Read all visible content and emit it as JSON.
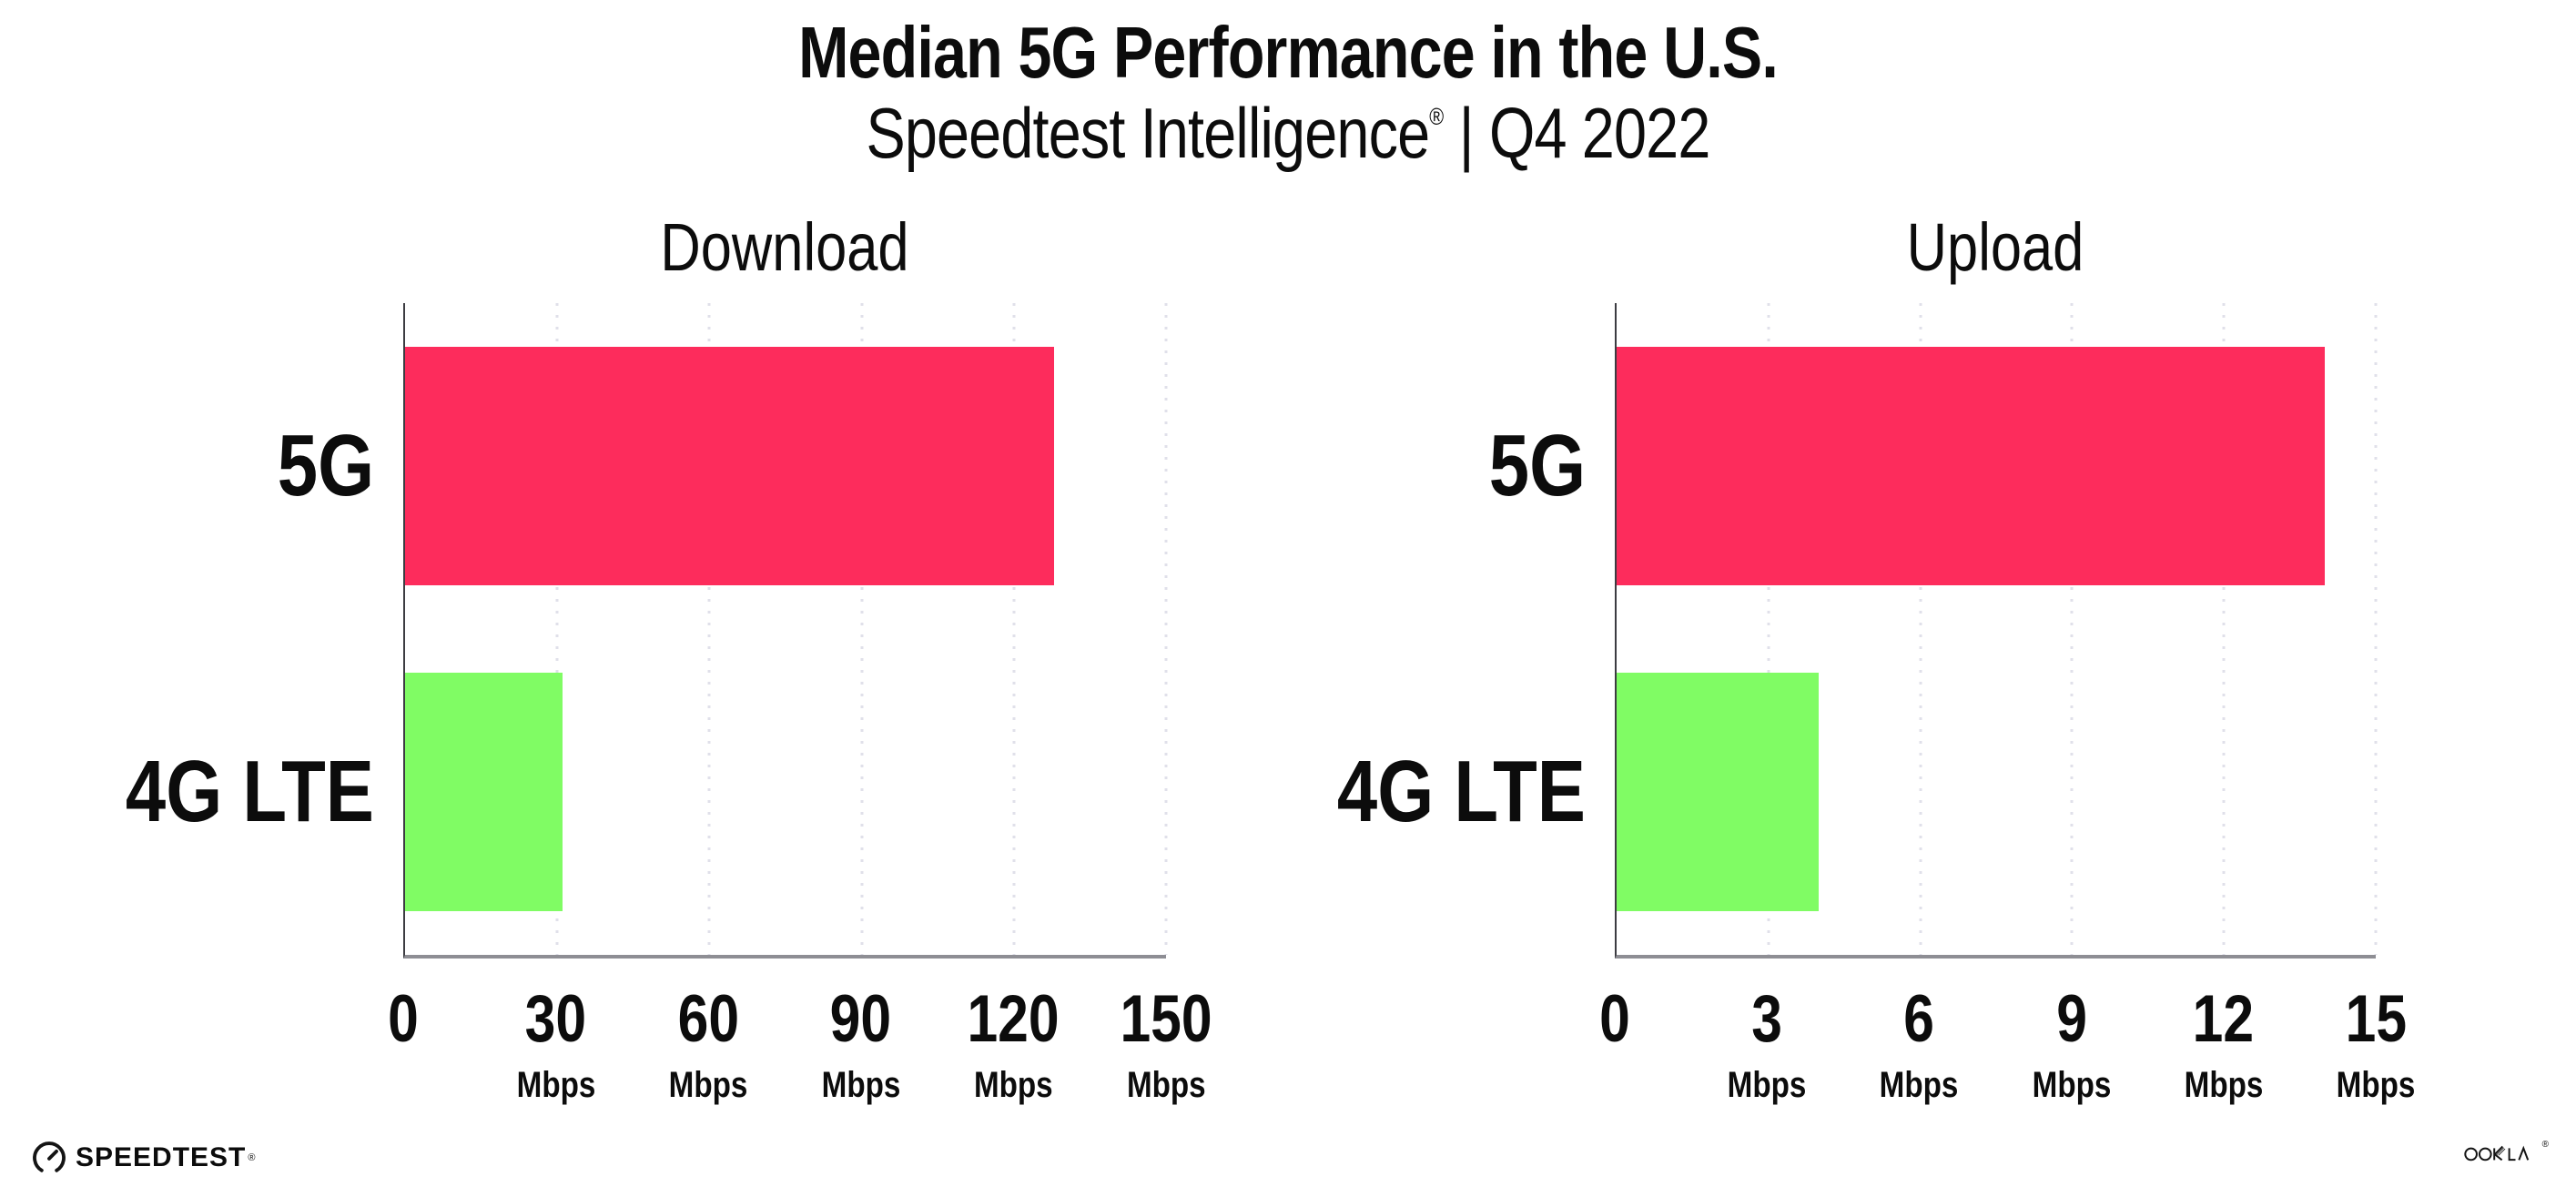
{
  "title": "Median 5G Performance in the U.S.",
  "subtitle": {
    "brand": "Speedtest Intelligence",
    "reg_mark": "®",
    "rest": "| Q4 2022"
  },
  "colors": {
    "bar_5g": "#fd2c5c",
    "bar_4g_lte": "#80fc64",
    "axis_x": "#8e8e94",
    "axis_y": "#3c3c42",
    "gridline": "#e0e0ea",
    "text": "#0c0c0c"
  },
  "icons": {
    "speedtest": "gauge-icon",
    "ookla": "ookla-wordmark"
  },
  "chart_data": [
    {
      "type": "bar",
      "orientation": "horizontal",
      "title": "Download",
      "categories": [
        "5G",
        "4G LTE"
      ],
      "values": [
        128,
        31
      ],
      "unit": "Mbps",
      "xlim": [
        0,
        150
      ],
      "xticks": [
        0,
        30,
        60,
        90,
        120,
        150
      ],
      "grid": "dotted-vertical",
      "legend": "none"
    },
    {
      "type": "bar",
      "orientation": "horizontal",
      "title": "Upload",
      "categories": [
        "5G",
        "4G LTE"
      ],
      "values": [
        14,
        4
      ],
      "unit": "Mbps",
      "xlim": [
        0,
        15
      ],
      "xticks": [
        0,
        3,
        6,
        9,
        12,
        15
      ],
      "grid": "dotted-vertical",
      "legend": "none"
    }
  ],
  "footer": {
    "speedtest_label": "SPEEDTEST",
    "speedtest_reg": "®",
    "ookla_label": "OOKLA",
    "ookla_reg": "®"
  }
}
